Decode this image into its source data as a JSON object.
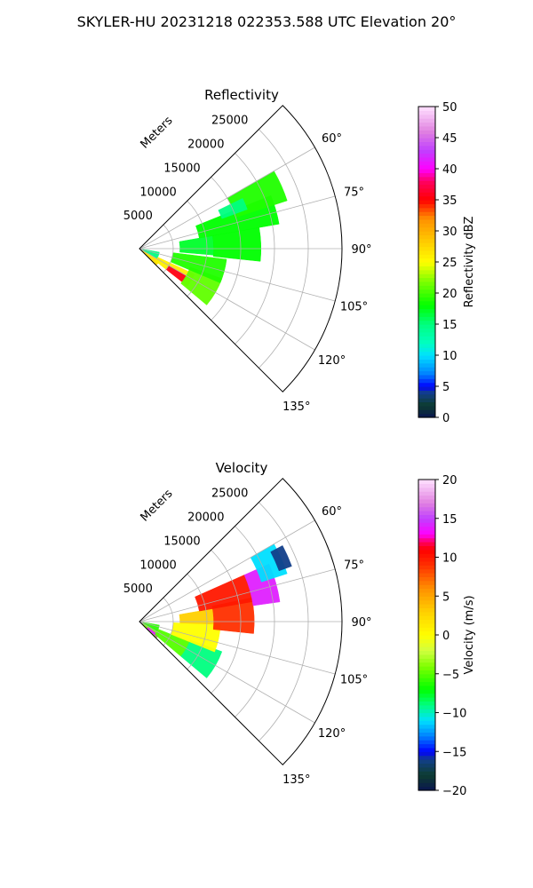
{
  "suptitle": "SKYLER-HU  20231218  022353.588 UTC Elevation 20°",
  "chart_data": [
    {
      "type": "heatmap",
      "subtype": "polar-sector",
      "title": "Reflectivity",
      "radial_label": "Meters",
      "radial_ticks": [
        5000,
        10000,
        15000,
        20000,
        25000
      ],
      "radial_tick_labels": [
        "5000",
        "10000",
        "15000",
        "20000",
        "25000"
      ],
      "radial_max": 30000,
      "angle_range_deg": [
        45,
        135
      ],
      "angle_ticks_deg": [
        60,
        75,
        90,
        105,
        120,
        135
      ],
      "angle_tick_labels": [
        "60°",
        "75°",
        "90°",
        "105°",
        "120°",
        "135°"
      ],
      "grid": true,
      "colorbar": {
        "label": "Reflectivity dBZ",
        "min": 0,
        "max": 50,
        "ticks": [
          0,
          5,
          10,
          15,
          20,
          25,
          30,
          35,
          40,
          45,
          50
        ],
        "tick_labels": [
          "0",
          "5",
          "10",
          "15",
          "20",
          "25",
          "30",
          "35",
          "40",
          "45",
          "50"
        ],
        "stops": [
          [
            0,
            "#0a1550"
          ],
          [
            2,
            "#0d3d30"
          ],
          [
            4,
            "#123f8a"
          ],
          [
            5,
            "#0000ff"
          ],
          [
            7,
            "#0080ff"
          ],
          [
            10,
            "#00e0ff"
          ],
          [
            12,
            "#00ffc0"
          ],
          [
            15,
            "#00ff80"
          ],
          [
            18,
            "#00ff00"
          ],
          [
            22,
            "#80ff00"
          ],
          [
            25,
            "#ffff00"
          ],
          [
            28,
            "#ffd000"
          ],
          [
            32,
            "#ff9000"
          ],
          [
            35,
            "#ff0000"
          ],
          [
            38,
            "#ff0060"
          ],
          [
            40,
            "#ff00ff"
          ],
          [
            43,
            "#c040ff"
          ],
          [
            46,
            "#e080e0"
          ],
          [
            50,
            "#ffe0ff"
          ]
        ]
      },
      "echoes": [
        {
          "r": [
            500,
            3500
          ],
          "a": [
            120,
            134
          ],
          "value": 27
        },
        {
          "r": [
            500,
            3000
          ],
          "a": [
            100,
            120
          ],
          "value": 15
        },
        {
          "r": [
            3000,
            9000
          ],
          "a": [
            115,
            128
          ],
          "value": 26
        },
        {
          "r": [
            5000,
            8000
          ],
          "a": [
            120,
            128
          ],
          "value": 36
        },
        {
          "r": [
            8000,
            13000
          ],
          "a": [
            110,
            130
          ],
          "value": 21
        },
        {
          "r": [
            5000,
            13000
          ],
          "a": [
            97,
            113
          ],
          "value": 19
        },
        {
          "r": [
            6000,
            11000
          ],
          "a": [
            80,
            95
          ],
          "value": 17
        },
        {
          "r": [
            11000,
            18000
          ],
          "a": [
            80,
            96
          ],
          "value": 18
        },
        {
          "r": [
            9000,
            21000
          ],
          "a": [
            68,
            80
          ],
          "value": 18
        },
        {
          "r": [
            15000,
            23000
          ],
          "a": [
            60,
            72
          ],
          "value": 19
        },
        {
          "r": [
            13000,
            17000
          ],
          "a": [
            64,
            70
          ],
          "value": 15
        }
      ]
    },
    {
      "type": "heatmap",
      "subtype": "polar-sector",
      "title": "Velocity",
      "radial_label": "Meters",
      "radial_ticks": [
        5000,
        10000,
        15000,
        20000,
        25000
      ],
      "radial_tick_labels": [
        "5000",
        "10000",
        "15000",
        "20000",
        "25000"
      ],
      "radial_max": 30000,
      "angle_range_deg": [
        45,
        135
      ],
      "angle_ticks_deg": [
        60,
        75,
        90,
        105,
        120,
        135
      ],
      "angle_tick_labels": [
        "60°",
        "75°",
        "90°",
        "105°",
        "120°",
        "135°"
      ],
      "grid": true,
      "colorbar": {
        "label": "Velocity (m/s)",
        "min": -20,
        "max": 20,
        "ticks": [
          -20,
          -15,
          -10,
          -5,
          0,
          5,
          10,
          15,
          20
        ],
        "tick_labels": [
          "−20",
          "−15",
          "−10",
          "−5",
          "0",
          "5",
          "10",
          "15",
          "20"
        ],
        "stops": [
          [
            -20,
            "#0a1550"
          ],
          [
            -18,
            "#0d3d30"
          ],
          [
            -16,
            "#123f8a"
          ],
          [
            -15,
            "#0000ff"
          ],
          [
            -13,
            "#0080ff"
          ],
          [
            -11,
            "#00e0ff"
          ],
          [
            -9,
            "#00ff80"
          ],
          [
            -7,
            "#00ff00"
          ],
          [
            -4,
            "#80ff00"
          ],
          [
            -2,
            "#d0ff40"
          ],
          [
            0,
            "#ffff00"
          ],
          [
            3,
            "#ffd000"
          ],
          [
            6,
            "#ff9000"
          ],
          [
            9,
            "#ff3000"
          ],
          [
            11,
            "#ff0000"
          ],
          [
            12,
            "#ff0060"
          ],
          [
            13,
            "#ff00ff"
          ],
          [
            15,
            "#c040ff"
          ],
          [
            17,
            "#e080e0"
          ],
          [
            20,
            "#ffe0ff"
          ]
        ]
      },
      "echoes": [
        {
          "r": [
            500,
            3000
          ],
          "a": [
            100,
            120
          ],
          "value": -6
        },
        {
          "r": [
            500,
            3500
          ],
          "a": [
            120,
            134
          ],
          "value": -4
        },
        {
          "r": [
            1500,
            3500
          ],
          "a": [
            125,
            132
          ],
          "value": 14
        },
        {
          "r": [
            3000,
            8000
          ],
          "a": [
            112,
            130
          ],
          "value": -5
        },
        {
          "r": [
            8000,
            13000
          ],
          "a": [
            110,
            130
          ],
          "value": -9
        },
        {
          "r": [
            5000,
            12000
          ],
          "a": [
            92,
            112
          ],
          "value": 0
        },
        {
          "r": [
            6000,
            11000
          ],
          "a": [
            80,
            92
          ],
          "value": 3
        },
        {
          "r": [
            11000,
            17000
          ],
          "a": [
            78,
            96
          ],
          "value": 9
        },
        {
          "r": [
            9000,
            17000
          ],
          "a": [
            66,
            80
          ],
          "value": 10
        },
        {
          "r": [
            17000,
            21000
          ],
          "a": [
            66,
            82
          ],
          "value": 14
        },
        {
          "r": [
            19000,
            23000
          ],
          "a": [
            60,
            72
          ],
          "value": -11
        },
        {
          "r": [
            22000,
            24000
          ],
          "a": [
            62,
            70
          ],
          "value": -16
        }
      ]
    }
  ]
}
